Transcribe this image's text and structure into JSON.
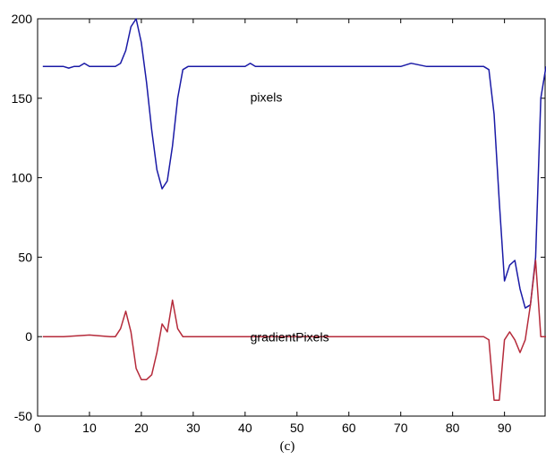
{
  "chart_data": {
    "type": "line",
    "title": "",
    "xlabel": "",
    "ylabel": "",
    "xlim": [
      0,
      98
    ],
    "ylim": [
      -50,
      200
    ],
    "grid": false,
    "x_ticks": [
      0,
      10,
      20,
      30,
      40,
      50,
      60,
      70,
      80,
      90
    ],
    "y_ticks": [
      -50,
      0,
      50,
      100,
      150,
      200
    ],
    "x_tick_labels": [
      "0",
      "10",
      "20",
      "30",
      "40",
      "50",
      "60",
      "70",
      "80",
      "90"
    ],
    "y_tick_labels": [
      "-50",
      "0",
      "50",
      "100",
      "150",
      "200"
    ],
    "caption": "(c)",
    "annotations": [
      {
        "text": "pixels",
        "x": 41,
        "y": 148
      },
      {
        "text": "gradientPixels",
        "x": 41,
        "y": -3
      }
    ],
    "series": [
      {
        "name": "pixels",
        "color": "#1a1aa6",
        "x": [
          1,
          2,
          3,
          4,
          5,
          6,
          7,
          8,
          9,
          10,
          11,
          12,
          13,
          14,
          15,
          16,
          17,
          18,
          19,
          20,
          21,
          22,
          23,
          24,
          25,
          26,
          27,
          28,
          29,
          30,
          35,
          40,
          41,
          42,
          45,
          50,
          55,
          60,
          62,
          65,
          68,
          70,
          72,
          75,
          80,
          85,
          86,
          87,
          88,
          89,
          90,
          91,
          92,
          93,
          94,
          95,
          96,
          97,
          98
        ],
        "values": [
          170,
          170,
          170,
          170,
          170,
          169,
          170,
          170,
          172,
          170,
          170,
          170,
          170,
          170,
          170,
          172,
          180,
          195,
          200,
          185,
          160,
          130,
          105,
          93,
          98,
          120,
          150,
          168,
          170,
          170,
          170,
          170,
          172,
          170,
          170,
          170,
          170,
          170,
          170,
          170,
          170,
          170,
          172,
          170,
          170,
          170,
          170,
          168,
          140,
          85,
          35,
          45,
          48,
          30,
          18,
          20,
          50,
          150,
          170
        ]
      },
      {
        "name": "gradientPixels",
        "color": "#b52a3a",
        "x": [
          1,
          5,
          10,
          14,
          15,
          16,
          17,
          18,
          19,
          20,
          21,
          22,
          23,
          24,
          25,
          26,
          27,
          28,
          29,
          30,
          40,
          50,
          60,
          70,
          80,
          86,
          87,
          88,
          89,
          90,
          91,
          92,
          93,
          94,
          95,
          96,
          97,
          98
        ],
        "values": [
          0,
          0,
          1,
          0,
          0,
          5,
          16,
          3,
          -20,
          -27,
          -27,
          -24,
          -10,
          8,
          3,
          23,
          5,
          0,
          0,
          0,
          0,
          0,
          0,
          0,
          0,
          0,
          -2,
          -40,
          -40,
          -2,
          3,
          -2,
          -10,
          -2,
          20,
          48,
          0,
          0
        ]
      }
    ]
  }
}
